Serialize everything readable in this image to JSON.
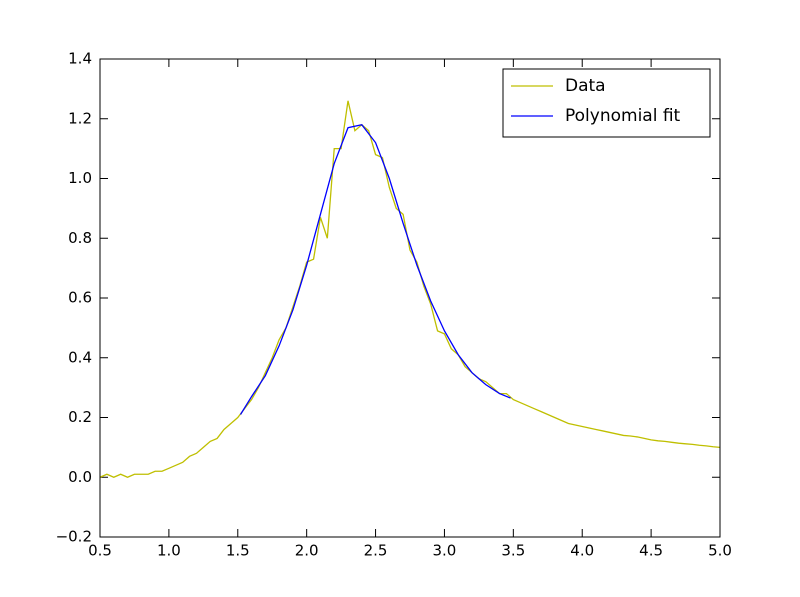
{
  "chart_data": {
    "type": "line",
    "series": [
      {
        "name": "Data",
        "color": "#bfbf00",
        "x": [
          0.5,
          0.55,
          0.6,
          0.65,
          0.7,
          0.75,
          0.8,
          0.85,
          0.9,
          0.95,
          1.0,
          1.05,
          1.1,
          1.15,
          1.2,
          1.25,
          1.3,
          1.35,
          1.4,
          1.45,
          1.5,
          1.55,
          1.6,
          1.65,
          1.7,
          1.75,
          1.8,
          1.85,
          1.9,
          1.95,
          2.0,
          2.05,
          2.1,
          2.15,
          2.2,
          2.25,
          2.3,
          2.35,
          2.4,
          2.45,
          2.5,
          2.55,
          2.6,
          2.65,
          2.7,
          2.75,
          2.8,
          2.85,
          2.9,
          2.95,
          3.0,
          3.05,
          3.1,
          3.15,
          3.2,
          3.25,
          3.3,
          3.35,
          3.4,
          3.45,
          3.5,
          3.55,
          3.6,
          3.65,
          3.7,
          3.75,
          3.8,
          3.85,
          3.9,
          3.95,
          4.0,
          4.05,
          4.1,
          4.15,
          4.2,
          4.25,
          4.3,
          4.35,
          4.4,
          4.45,
          4.5,
          4.55,
          4.6,
          4.65,
          4.7,
          4.75,
          4.8,
          4.85,
          4.9,
          4.95,
          5.0
        ],
        "values": [
          0.0,
          0.01,
          0.0,
          0.01,
          0.0,
          0.01,
          0.01,
          0.01,
          0.02,
          0.02,
          0.03,
          0.04,
          0.05,
          0.07,
          0.08,
          0.1,
          0.12,
          0.13,
          0.16,
          0.18,
          0.2,
          0.23,
          0.26,
          0.3,
          0.35,
          0.4,
          0.46,
          0.5,
          0.57,
          0.64,
          0.72,
          0.73,
          0.87,
          0.8,
          1.1,
          1.1,
          1.26,
          1.16,
          1.18,
          1.16,
          1.08,
          1.07,
          0.97,
          0.9,
          0.88,
          0.76,
          0.72,
          0.64,
          0.58,
          0.49,
          0.48,
          0.43,
          0.41,
          0.37,
          0.35,
          0.33,
          0.32,
          0.3,
          0.28,
          0.28,
          0.26,
          0.25,
          0.24,
          0.23,
          0.22,
          0.21,
          0.2,
          0.19,
          0.18,
          0.175,
          0.17,
          0.165,
          0.16,
          0.155,
          0.15,
          0.145,
          0.14,
          0.138,
          0.135,
          0.13,
          0.125,
          0.122,
          0.12,
          0.117,
          0.114,
          0.112,
          0.11,
          0.107,
          0.105,
          0.102,
          0.1
        ]
      },
      {
        "name": "Polynomial fit",
        "color": "#0000ff",
        "x": [
          1.52,
          1.6,
          1.7,
          1.8,
          1.9,
          2.0,
          2.1,
          2.2,
          2.3,
          2.4,
          2.5,
          2.6,
          2.7,
          2.8,
          2.9,
          3.0,
          3.1,
          3.2,
          3.3,
          3.4,
          3.48
        ],
        "values": [
          0.21,
          0.27,
          0.34,
          0.44,
          0.56,
          0.71,
          0.88,
          1.05,
          1.17,
          1.18,
          1.12,
          1.0,
          0.85,
          0.71,
          0.59,
          0.49,
          0.41,
          0.35,
          0.31,
          0.28,
          0.265
        ]
      }
    ],
    "xlim": [
      0.5,
      5.0
    ],
    "xticks": [
      0.5,
      {
        "value": 1,
        "label": "1.0"
      },
      1.5,
      {
        "value": 2,
        "label": "2.0"
      },
      2.5,
      {
        "value": 3,
        "label": "3.0"
      },
      3.5,
      {
        "value": 4,
        "label": "4.0"
      },
      4.5,
      {
        "value": 5,
        "label": "5.0"
      }
    ],
    "ylim": [
      -0.2,
      1.4
    ],
    "yticks": [
      {
        "value": -0.2,
        "label": "−0.2"
      },
      {
        "value": 0,
        "label": "0.0"
      },
      0.2,
      0.4,
      0.6,
      0.8,
      {
        "value": 1,
        "label": "1.0"
      },
      1.2,
      1.4
    ],
    "grid": false,
    "legend": "upper right"
  }
}
